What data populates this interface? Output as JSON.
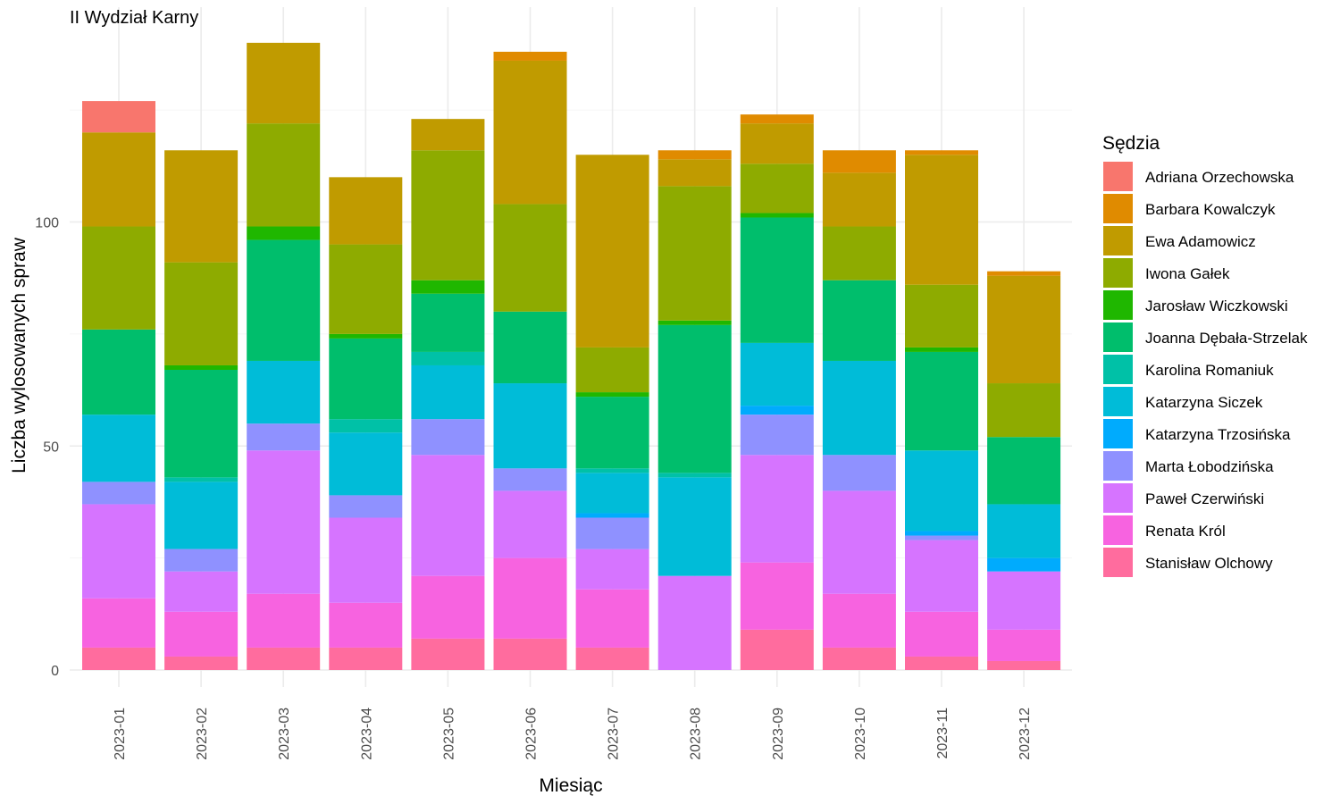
{
  "chart_data": {
    "type": "bar",
    "stacked": true,
    "title": "II Wydział Karny",
    "xlabel": "Miesiąc",
    "ylabel": "Liczba wylosowanych spraw",
    "ylim": [
      0,
      140
    ],
    "yticks": [
      0,
      50,
      100
    ],
    "grid": true,
    "legend": {
      "title": "Sędzia",
      "position": "right"
    },
    "categories": [
      "2023-01",
      "2023-02",
      "2023-03",
      "2023-04",
      "2023-05",
      "2023-06",
      "2023-07",
      "2023-08",
      "2023-09",
      "2023-10",
      "2023-11",
      "2023-12"
    ],
    "series": [
      {
        "name": "Stanisław Olchowy",
        "color": "#FF6C9E",
        "values": [
          5,
          3,
          5,
          5,
          7,
          7,
          5,
          0,
          9,
          5,
          3,
          2
        ]
      },
      {
        "name": "Renata Król",
        "color": "#F763E0",
        "values": [
          11,
          10,
          12,
          10,
          14,
          18,
          13,
          0,
          15,
          12,
          10,
          7
        ]
      },
      {
        "name": "Paweł Czerwiński",
        "color": "#D674FF",
        "values": [
          21,
          9,
          32,
          19,
          27,
          15,
          9,
          21,
          24,
          23,
          16,
          13
        ]
      },
      {
        "name": "Marta Łobodzińska",
        "color": "#8F91FF",
        "values": [
          5,
          5,
          6,
          5,
          8,
          5,
          7,
          0,
          9,
          8,
          1,
          0
        ]
      },
      {
        "name": "Katarzyna Trzosińska",
        "color": "#00ABFD",
        "values": [
          0,
          0,
          0,
          0,
          0,
          0,
          1,
          0,
          2,
          0,
          1,
          3
        ]
      },
      {
        "name": "Katarzyna Siczek",
        "color": "#00BCD8",
        "values": [
          15,
          15,
          14,
          14,
          12,
          19,
          9,
          22,
          14,
          21,
          18,
          12
        ]
      },
      {
        "name": "Karolina Romaniuk",
        "color": "#00C1A7",
        "values": [
          0,
          1,
          0,
          3,
          3,
          0,
          1,
          1,
          0,
          0,
          0,
          0
        ]
      },
      {
        "name": "Joanna Dębała-Strzelak",
        "color": "#00BE6C",
        "values": [
          19,
          24,
          27,
          18,
          13,
          16,
          16,
          33,
          28,
          18,
          22,
          15
        ]
      },
      {
        "name": "Jarosław Wiczkowski",
        "color": "#1FB700",
        "values": [
          0,
          1,
          3,
          1,
          3,
          0,
          1,
          1,
          1,
          0,
          1,
          0
        ]
      },
      {
        "name": "Iwona Gałek",
        "color": "#8EAB00",
        "values": [
          23,
          23,
          23,
          20,
          29,
          24,
          10,
          30,
          11,
          12,
          14,
          12
        ]
      },
      {
        "name": "Ewa Adamowicz",
        "color": "#C09B00",
        "values": [
          21,
          25,
          18,
          15,
          7,
          32,
          43,
          6,
          9,
          12,
          29,
          24
        ]
      },
      {
        "name": "Barbara Kowalczyk",
        "color": "#E08B00",
        "values": [
          0,
          0,
          0,
          0,
          0,
          2,
          0,
          2,
          2,
          5,
          1,
          1
        ]
      },
      {
        "name": "Adriana Orzechowska",
        "color": "#F8766D",
        "values": [
          7,
          0,
          0,
          0,
          0,
          0,
          0,
          0,
          0,
          0,
          0,
          0
        ]
      }
    ],
    "legend_order": [
      "Adriana Orzechowska",
      "Barbara Kowalczyk",
      "Ewa Adamowicz",
      "Iwona Gałek",
      "Jarosław Wiczkowski",
      "Joanna Dębała-Strzelak",
      "Karolina Romaniuk",
      "Katarzyna Siczek",
      "Katarzyna Trzosińska",
      "Marta Łobodzińska",
      "Paweł Czerwiński",
      "Renata Król",
      "Stanisław Olchowy"
    ]
  }
}
